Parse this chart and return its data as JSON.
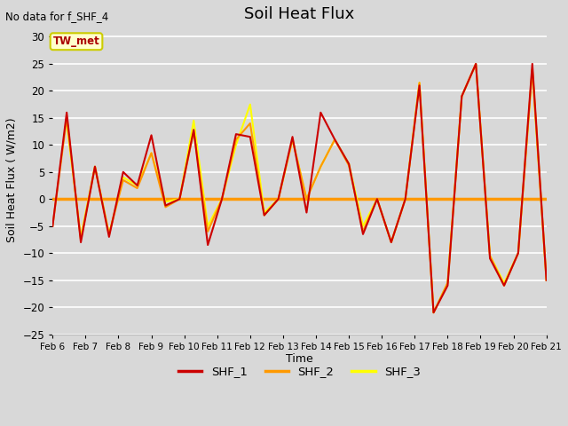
{
  "title": "Soil Heat Flux",
  "subtitle": "No data for f_SHF_4",
  "xlabel": "Time",
  "ylabel": "Soil Heat Flux ( W/m2)",
  "ylim": [
    -25,
    32
  ],
  "yticks": [
    -25,
    -20,
    -15,
    -10,
    -5,
    0,
    5,
    10,
    15,
    20,
    25,
    30
  ],
  "xtick_labels": [
    "Feb 6",
    "Feb 7",
    "Feb 8",
    "Feb 9",
    "Feb 10",
    "Feb 11",
    "Feb 12",
    "Feb 13",
    "Feb 14",
    "Feb 15",
    "Feb 16",
    "Feb 17",
    "Feb 18",
    "Feb 19",
    "Feb 20",
    "Feb 21"
  ],
  "fig_facecolor": "#d8d8d8",
  "plot_facecolor": "#d8d8d8",
  "grid_color": "#ffffff",
  "annotation_box_text": "TW_met",
  "annotation_box_facecolor": "#ffffcc",
  "annotation_box_edgecolor": "#cccc00",
  "annotation_text_color": "#aa0000",
  "shf1_color": "#cc0000",
  "shf2_color": "#ff9900",
  "shf3_color": "#ffff00",
  "legend_entries": [
    "SHF_1",
    "SHF_2",
    "SHF_3"
  ],
  "shf1": [
    -5.0,
    16.0,
    -8.0,
    6.0,
    -7.0,
    5.0,
    2.5,
    11.8,
    -1.2,
    0.0,
    12.8,
    -8.5,
    0.0,
    12.0,
    11.5,
    -3.0,
    0.0,
    11.5,
    -2.5,
    16.0,
    11.0,
    6.5,
    -6.5,
    0.0,
    -8.0,
    0.0,
    21.0,
    -21.0,
    -16.0,
    19.0,
    25.0,
    -11.0,
    -16.0,
    -10.0,
    25.0,
    -15.0
  ],
  "shf2": [
    -5.0,
    15.0,
    -7.5,
    6.0,
    -6.5,
    3.5,
    2.0,
    8.5,
    -1.5,
    0.0,
    12.5,
    -6.0,
    0.0,
    11.0,
    14.0,
    -3.0,
    0.0,
    11.0,
    0.0,
    6.0,
    11.0,
    6.2,
    -6.0,
    0.0,
    -8.0,
    0.0,
    21.5,
    -21.0,
    -15.5,
    19.0,
    25.0,
    -10.5,
    -16.0,
    -10.0,
    24.0,
    -15.0
  ],
  "shf3": [
    null,
    14.0,
    -7.0,
    6.0,
    -6.5,
    4.0,
    2.5,
    8.5,
    -0.5,
    0.0,
    14.5,
    -5.0,
    0.0,
    10.0,
    17.5,
    -2.5,
    0.0,
    11.0,
    0.0,
    6.0,
    11.0,
    6.5,
    -5.0,
    0.0,
    -8.0,
    0.0,
    21.5,
    -21.0,
    -15.5,
    19.0,
    25.0,
    -10.5,
    -15.5,
    -10.0,
    24.0,
    -15.0
  ]
}
